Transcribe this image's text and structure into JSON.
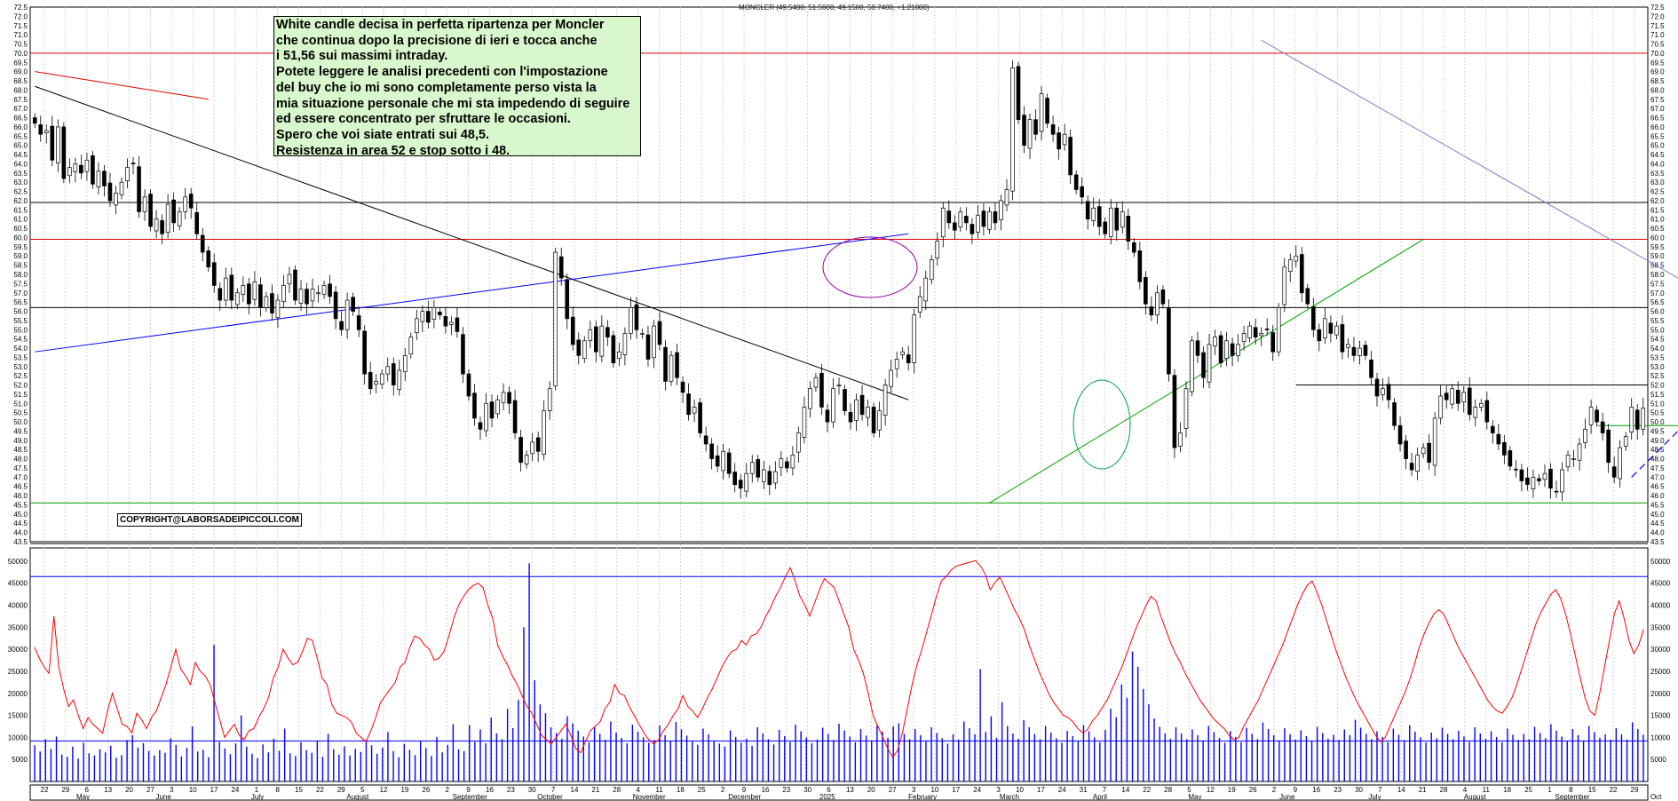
{
  "header": {
    "title": "MONCLER (49.5400, 51.5600, 49.1500, 50.7400, +1.21000)"
  },
  "note": {
    "lines": [
      "White candle decisa in perfetta ripartenza per Moncler",
      "che continua dopo la precisione di ieri e tocca anche",
      "i 51,56 sui massimi intraday.",
      "Potete leggere le analisi precedenti con l'impostazione",
      "del buy che io mi sono completamente perso vista la",
      "mia situazione personale che mi sta impedendo di seguire",
      "ed essere concentrato per sfruttare le occasioni.",
      "Spero che voi siate entrati sui 48,5.",
      "Resistenza in area 52 e stop sotto i 48."
    ]
  },
  "copyright": "COPYRIGHT@LABORSADEIPICCOLI.COM",
  "colors": {
    "resistance": "#e00000",
    "support_black": "#000000",
    "support_green": "#00a000",
    "trend_blue": "#0000ff",
    "trend_light": "#8080cc",
    "volume": "#0000ff",
    "volume_avg": "#ff0000",
    "candle": "#000000",
    "note_bg": "#d9f7cc"
  },
  "chart_data": [
    {
      "type": "candlestick",
      "title": "MONCLER (49.5400, 51.5600, 49.1500, 50.7400, +1.21000)",
      "ylim": [
        43.5,
        72.5
      ],
      "ytick_step": 0.5,
      "y_axis": "both sides",
      "grid": "vertical dotted",
      "x_day_labels": [
        "22",
        "29",
        "6",
        "13",
        "20",
        "27",
        "3",
        "10",
        "17",
        "24",
        "1",
        "8",
        "15",
        "22",
        "29",
        "5",
        "12",
        "19",
        "26",
        "2",
        "9",
        "16",
        "23",
        "30",
        "7",
        "14",
        "21",
        "28",
        "4",
        "11",
        "18",
        "25",
        "2",
        "9",
        "16",
        "23",
        "30",
        "6",
        "13",
        "20",
        "27",
        "3",
        "10",
        "17",
        "24",
        "3",
        "10",
        "17",
        "24",
        "31",
        "7",
        "14",
        "22",
        "28",
        "5",
        "12",
        "19",
        "26",
        "2",
        "9",
        "16",
        "23",
        "30",
        "7",
        "14",
        "21",
        "28",
        "4",
        "11",
        "18",
        "25",
        "1",
        "8",
        "15",
        "22",
        "29"
      ],
      "x_month_labels": [
        "May",
        "June",
        "July",
        "August",
        "September",
        "October",
        "November",
        "December",
        "2025",
        "February",
        "March",
        "April",
        "May",
        "June",
        "July",
        "August",
        "September",
        "Oct"
      ],
      "horizontal_levels": [
        {
          "value": 70.0,
          "color": "red"
        },
        {
          "value": 59.9,
          "color": "red"
        },
        {
          "value": 61.9,
          "color": "black"
        },
        {
          "value": 56.2,
          "color": "black"
        },
        {
          "value": 52.0,
          "color": "black",
          "from": "2025-04"
        },
        {
          "value": 45.6,
          "color": "green"
        },
        {
          "value": 43.4,
          "color": "black"
        }
      ],
      "trendlines": [
        {
          "color": "black",
          "from": [
            0,
            68.2
          ],
          "to": [
            151,
            51.2
          ]
        },
        {
          "color": "blue",
          "from": [
            0,
            53.8
          ],
          "to": [
            151,
            60.2
          ]
        },
        {
          "color": "red",
          "from": [
            0,
            69.0
          ],
          "to": [
            30,
            67.5
          ]
        },
        {
          "color": "green",
          "from": [
            165,
            45.6
          ],
          "to": [
            240,
            59.9
          ]
        },
        {
          "color": "lightblue",
          "from": [
            212,
            70.7
          ],
          "to": [
            360,
            44.2
          ]
        }
      ],
      "ohlc_key": "estimated daily closes",
      "close": [
        66.2,
        65.6,
        65.8,
        64.2,
        66.0,
        63.2,
        63.8,
        64.0,
        63.5,
        64.2,
        62.9,
        63.6,
        62.8,
        62.0,
        62.4,
        63.0,
        63.8,
        64.0,
        61.4,
        62.2,
        60.6,
        61.0,
        60.2,
        61.8,
        60.8,
        61.4,
        62.2,
        61.6,
        60.2,
        59.2,
        58.4,
        57.4,
        56.6,
        57.8,
        56.6,
        57.0,
        57.4,
        56.4,
        57.6,
        56.2,
        56.8,
        55.9,
        56.6,
        57.4,
        58.0,
        56.6,
        57.2,
        56.4,
        57.2,
        57.0,
        57.4,
        56.8,
        55.6,
        55.0,
        56.6,
        56.0,
        55.0,
        52.6,
        51.8,
        52.2,
        52.6,
        53.0,
        52.0,
        52.8,
        53.6,
        54.6,
        55.6,
        56.0,
        55.4,
        56.2,
        55.8,
        55.2,
        55.4,
        54.9,
        52.6,
        51.4,
        50.2,
        49.6,
        51.0,
        50.2,
        51.2,
        51.6,
        51.0,
        49.4,
        47.8,
        48.2,
        48.9,
        48.4,
        50.6,
        51.8,
        59.2,
        57.8,
        55.6,
        54.2,
        53.6,
        54.4,
        55.0,
        53.8,
        55.2,
        54.6,
        53.2,
        53.8,
        54.8,
        56.2,
        55.0,
        54.8,
        53.4,
        55.2,
        54.2,
        52.2,
        53.6,
        52.4,
        51.6,
        50.4,
        50.8,
        49.4,
        48.8,
        48.0,
        47.6,
        48.4,
        47.2,
        46.6,
        46.4,
        47.2,
        47.8,
        47.0,
        47.4,
        46.6,
        47.3,
        48.0,
        47.5,
        48.2,
        49.4,
        50.8,
        51.8,
        52.4,
        50.8,
        50.0,
        51.8,
        52.0,
        50.6,
        50.0,
        51.2,
        50.4,
        50.8,
        49.4,
        50.6,
        52.0,
        52.8,
        53.4,
        53.8,
        53.2,
        55.8,
        56.8,
        57.8,
        58.8,
        59.8,
        61.6,
        60.8,
        60.4,
        61.4,
        60.8,
        60.2,
        61.2,
        60.6,
        61.4,
        60.8,
        62.0,
        62.6,
        69.2,
        66.4,
        65.0,
        66.4,
        65.6,
        67.8,
        66.2,
        65.6,
        64.8,
        65.6,
        63.4,
        62.6,
        62.2,
        61.0,
        61.6,
        60.6,
        60.2,
        61.6,
        60.4,
        61.4,
        59.8,
        59.2,
        57.6,
        56.4,
        55.8,
        57.0,
        56.4,
        52.6,
        48.6,
        49.4,
        51.8,
        54.4,
        53.6,
        52.4,
        54.2,
        54.6,
        53.2,
        54.4,
        53.6,
        54.2,
        54.8,
        55.2,
        54.6,
        54.8,
        55.0,
        53.8,
        56.2,
        58.4,
        58.8,
        59.0,
        57.0,
        56.4,
        55.0,
        54.4,
        55.6,
        54.8,
        55.2,
        53.8,
        54.2,
        53.6,
        54.0,
        53.6,
        52.4,
        51.4,
        51.8,
        51.2,
        49.8,
        48.8,
        48.0,
        47.4,
        48.2,
        48.6,
        47.8,
        50.2,
        51.4,
        51.2,
        51.8,
        51.0,
        51.6,
        50.4,
        50.8,
        51.0,
        50.0,
        49.4,
        48.8,
        48.2,
        47.6,
        47.4,
        46.8,
        46.6,
        47.0,
        46.8,
        47.2,
        46.4,
        46.2,
        47.4,
        48.2,
        48.0,
        48.8,
        49.6,
        50.8,
        50.0,
        49.4,
        47.8,
        47.0,
        48.6,
        49.2,
        50.8,
        49.6,
        50.74
      ]
    },
    {
      "type": "bar+line",
      "name": "volume",
      "ylim": [
        0,
        53000
      ],
      "yticks": [
        5000,
        10000,
        15000,
        20000,
        25000,
        30000,
        35000,
        40000,
        45000,
        50000
      ],
      "levels": [
        46500,
        9200
      ],
      "series": [
        {
          "kind": "bar",
          "color": "blue"
        },
        {
          "kind": "line",
          "color": "red"
        }
      ],
      "avg_line": [
        30500,
        28000,
        26000,
        24500,
        37500,
        26000,
        21000,
        17000,
        18500,
        15000,
        12000,
        14500,
        13000,
        12000,
        11000,
        16000,
        20000,
        16500,
        13000,
        12500,
        11000,
        15500,
        14000,
        12000,
        14500,
        16000,
        19000,
        22000,
        26000,
        30000,
        25500,
        24000,
        22000,
        27000,
        25000,
        24000,
        22000,
        18000,
        14000,
        10000,
        11500,
        13000,
        10500,
        9500,
        11500,
        12000,
        14500,
        16500,
        19000,
        23500,
        26000,
        30000,
        28000,
        26500,
        27000,
        29500,
        32500,
        32000,
        28000,
        23500,
        22000,
        17500,
        15500,
        15000,
        14500,
        13500,
        11000,
        10000,
        9000,
        11500,
        14500,
        18000,
        19500,
        21000,
        22500,
        26000,
        27000,
        30500,
        33000,
        32500,
        31000,
        30000,
        27500,
        28000,
        29500,
        33000,
        37000,
        40000,
        42000,
        43500,
        44500,
        45000,
        44000,
        40000,
        37000,
        31000,
        28500,
        26500,
        24000,
        22000,
        19500,
        17000,
        15500,
        13000,
        10500,
        9500,
        8500,
        10000,
        11500,
        13000,
        10500,
        7500,
        6500,
        9000,
        11500,
        12500,
        13500,
        16500,
        18000,
        22000,
        20000,
        19500,
        17000,
        15000,
        13000,
        11000,
        9500,
        8500,
        9500,
        11500,
        13000,
        15000,
        16500,
        19500,
        17000,
        16000,
        14500,
        16500,
        19000,
        21000,
        23500,
        26000,
        28000,
        29500,
        30000,
        32000,
        31000,
        33000,
        33500,
        35000,
        37500,
        39500,
        42000,
        44000,
        46500,
        48500,
        45500,
        42000,
        40000,
        37500,
        40500,
        43500,
        46000,
        45000,
        44000,
        41000,
        38000,
        35000,
        30000,
        27500,
        24500,
        20000,
        15000,
        12500,
        10000,
        7500,
        5500,
        7000,
        11000,
        16500,
        22000,
        26500,
        30000,
        34000,
        38000,
        42000,
        45500,
        46500,
        48000,
        48800,
        49200,
        49500,
        49800,
        50100,
        48900,
        47000,
        43500,
        45200,
        46400,
        44000,
        41500,
        39000,
        37000,
        34500,
        31000,
        28000,
        25000,
        22500,
        20000,
        18000,
        16500,
        15000,
        14500,
        13500,
        12000,
        11000,
        11800,
        13800,
        15000,
        16800,
        18500,
        21000,
        23500,
        26000,
        29000,
        32000,
        35000,
        37500,
        40000,
        42000,
        41000,
        37500,
        34500,
        31500,
        29000,
        27000,
        24500,
        22500,
        20500,
        18500,
        17000,
        15500,
        14000,
        13000,
        12000,
        10500,
        9500,
        10000,
        12500,
        14500,
        16500,
        18500,
        21000,
        23500,
        26000,
        28500,
        31000,
        34000,
        37000,
        40000,
        42500,
        44500,
        45500,
        43000,
        40000,
        36500,
        33000,
        29500,
        26500,
        23500,
        21000,
        18500,
        16500,
        14500,
        12500,
        10500,
        9000,
        10000,
        12500,
        15000,
        17500,
        20000,
        23000,
        26500,
        30500,
        33500,
        36000,
        38000,
        39000,
        38000,
        35500,
        33000,
        30500,
        28500,
        26500,
        24500,
        22500,
        20500,
        18500,
        17000,
        16000,
        15500,
        17000,
        19000,
        22000,
        25500,
        29000,
        32500,
        36000,
        38500,
        40500,
        42500,
        43500,
        41500,
        38000,
        33500,
        28500,
        23500,
        19000,
        16000,
        15000,
        20000,
        26000,
        32000,
        38000,
        41000,
        37000,
        32000,
        29000,
        31000,
        34500
      ],
      "bar_values": [
        8200,
        6800,
        9600,
        7400,
        10200,
        6100,
        5600,
        7900,
        5200,
        8800,
        6400,
        5900,
        7300,
        6600,
        8100,
        5400,
        6000,
        9400,
        10500,
        7700,
        8700,
        6900,
        5900,
        7100,
        6500,
        9800,
        8300,
        5700,
        7600,
        12500,
        6800,
        7200,
        5500,
        31000,
        9000,
        7500,
        6200,
        8600,
        15000,
        7900,
        6300,
        5300,
        8400,
        6600,
        9700,
        7000,
        12000,
        6400,
        5800,
        8900,
        7100,
        6500,
        9200,
        5600,
        10800,
        7300,
        6100,
        8000,
        5900,
        7400,
        6700,
        9500,
        8200,
        6300,
        7700,
        11200,
        6900,
        5500,
        8500,
        7200,
        6000,
        9100,
        7600,
        5800,
        10100,
        6600,
        8300,
        13000,
        7300,
        6900,
        12800,
        9000,
        11800,
        8700,
        14500,
        10900,
        9600,
        16500,
        12100,
        18500,
        35000,
        49500,
        23000,
        17500,
        15500,
        12300,
        11000,
        9700,
        14800,
        13200,
        11500,
        10200,
        8900,
        12400,
        10800,
        9500,
        13600,
        11100,
        9900,
        8700,
        12900,
        11300,
        10000,
        8800,
        9400,
        12700,
        10500,
        9200,
        13500,
        11800,
        10400,
        9100,
        8300,
        12000,
        10700,
        9300,
        8600,
        7900,
        11600,
        10100,
        8800,
        9700,
        8100,
        12300,
        10900,
        9600,
        8400,
        11700,
        10300,
        9000,
        12900,
        11400,
        10000,
        8700,
        9500,
        12200,
        10800,
        9400,
        13100,
        11600,
        10200,
        8900,
        11900,
        10400,
        9200,
        12700,
        11300,
        9900,
        12500,
        13200,
        10800,
        9600,
        11900,
        10500,
        9300,
        12300,
        11000,
        9800,
        8600,
        10700,
        9500,
        13600,
        12100,
        10700,
        25500,
        11200,
        14800,
        9900,
        18000,
        12600,
        10900,
        9700,
        13900,
        12300,
        10800,
        9600,
        12600,
        11100,
        9800,
        8800,
        11500,
        10300,
        9100,
        12800,
        11400,
        10000,
        8900,
        11700,
        16500,
        14600,
        22000,
        19000,
        29500,
        26000,
        21000,
        17500,
        14300,
        12400,
        10900,
        9700,
        12300,
        10900,
        9600,
        11800,
        10500,
        9300,
        12600,
        11200,
        9900,
        8800,
        11400,
        10100,
        8900,
        12200,
        10800,
        9600,
        13400,
        11900,
        10500,
        9300,
        12100,
        10700,
        9500,
        11600,
        10300,
        9100,
        12400,
        11000,
        9700,
        10600,
        9400,
        11800,
        10500,
        14000,
        12200,
        10800,
        9600,
        11400,
        10100,
        8900,
        12000,
        10600,
        9400,
        12800,
        11300,
        10000,
        8900,
        11100,
        9800,
        12200,
        10800,
        9600,
        11500,
        10200,
        9000,
        12300,
        10900,
        9700,
        11400,
        10100,
        8900,
        12000,
        10600,
        9400,
        10800,
        9600,
        12400,
        11000,
        9800,
        13000,
        11500,
        10200,
        9100,
        11900,
        10500,
        9300,
        12600,
        11200,
        9900,
        10700,
        9500,
        12100,
        10700,
        9500,
        13400,
        11900,
        10600
      ]
    }
  ]
}
